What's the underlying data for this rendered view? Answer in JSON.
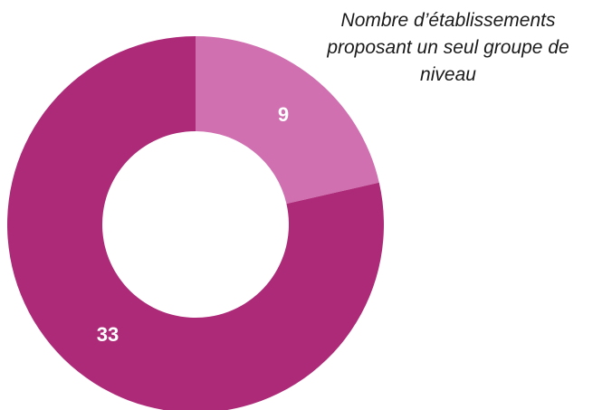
{
  "chart_data": {
    "type": "pie",
    "variant": "donut",
    "slices": [
      {
        "value": 9,
        "label": "9",
        "color": "#d070b0"
      },
      {
        "value": 33,
        "label": "33",
        "color": "#ad2a78"
      }
    ],
    "annotation": {
      "lines": [
        "Nombre d’établissements",
        "proposant un seul groupe de",
        "niveau"
      ]
    }
  }
}
